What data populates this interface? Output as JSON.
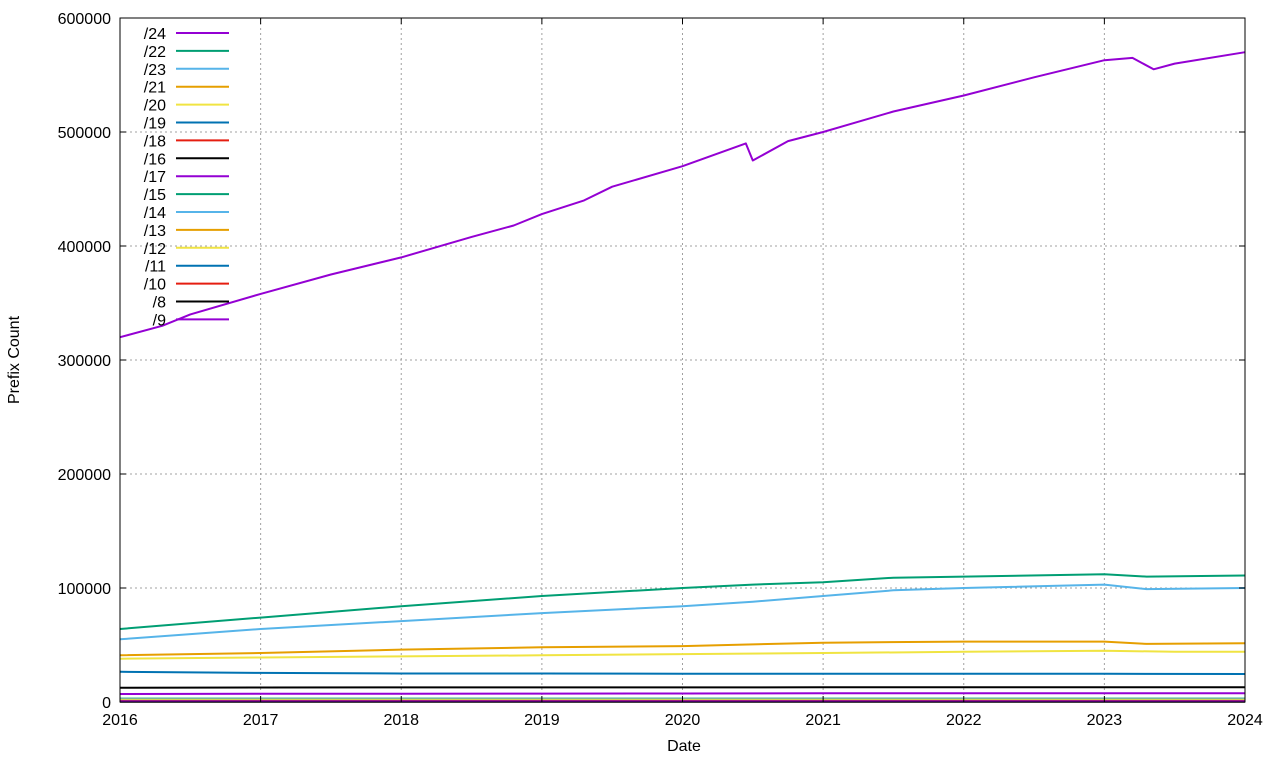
{
  "chart_data": {
    "type": "line",
    "title": "",
    "xlabel": "Date",
    "ylabel": "Prefix Count",
    "xlim": [
      2016,
      2024
    ],
    "ylim": [
      0,
      600000
    ],
    "x_ticks": [
      "2016",
      "2017",
      "2018",
      "2019",
      "2020",
      "2021",
      "2022",
      "2023",
      "2024"
    ],
    "y_ticks": [
      "0",
      "100000",
      "200000",
      "300000",
      "400000",
      "500000",
      "600000"
    ],
    "grid": true,
    "legend_position": "top-left",
    "series": [
      {
        "name": "/24",
        "color": "#9400d3",
        "x": [
          2016,
          2016.3,
          2016.5,
          2017,
          2017.5,
          2018,
          2018.5,
          2018.8,
          2019,
          2019.3,
          2019.5,
          2020,
          2020.45,
          2020.5,
          2020.75,
          2021,
          2021.5,
          2022,
          2022.5,
          2023,
          2023.2,
          2023.35,
          2023.5,
          2024
        ],
        "y": [
          320000,
          330000,
          340000,
          358000,
          375000,
          390000,
          408000,
          418000,
          428000,
          440000,
          452000,
          470000,
          490000,
          475000,
          492000,
          500000,
          518000,
          532000,
          548000,
          563000,
          565000,
          555000,
          560000,
          570000
        ]
      },
      {
        "name": "/22",
        "color": "#009e73",
        "x": [
          2016,
          2017,
          2018,
          2019,
          2020,
          2020.5,
          2021,
          2021.5,
          2022,
          2023,
          2023.3,
          2024
        ],
        "y": [
          64000,
          74000,
          84000,
          93000,
          100000,
          103000,
          105000,
          109000,
          110000,
          112000,
          110000,
          111000
        ]
      },
      {
        "name": "/23",
        "color": "#56b4e9",
        "x": [
          2016,
          2017,
          2018,
          2019,
          2020,
          2020.5,
          2021,
          2021.5,
          2022,
          2023,
          2023.3,
          2024
        ],
        "y": [
          55000,
          64000,
          71000,
          78000,
          84000,
          88000,
          93000,
          98000,
          100000,
          103000,
          99000,
          100000
        ]
      },
      {
        "name": "/21",
        "color": "#e69f00",
        "x": [
          2016,
          2017,
          2018,
          2019,
          2020,
          2021,
          2022,
          2023,
          2023.3,
          2024
        ],
        "y": [
          41000,
          43000,
          46000,
          48000,
          49000,
          52000,
          53000,
          53000,
          51000,
          51500
        ]
      },
      {
        "name": "/20",
        "color": "#f0e442",
        "x": [
          2016,
          2017,
          2018,
          2019,
          2020,
          2021,
          2022,
          2023,
          2023.5,
          2024
        ],
        "y": [
          38000,
          39000,
          40000,
          41000,
          42000,
          43000,
          44000,
          45000,
          44000,
          44000
        ]
      },
      {
        "name": "/19",
        "color": "#0072b2",
        "x": [
          2016,
          2017,
          2018,
          2019,
          2020,
          2021,
          2022,
          2023,
          2024
        ],
        "y": [
          26500,
          25500,
          25000,
          25000,
          24800,
          24800,
          24700,
          24700,
          24600
        ]
      },
      {
        "name": "/18",
        "color": "#e51e10",
        "x": [
          2016,
          2024
        ],
        "y": [
          1500,
          1500
        ]
      },
      {
        "name": "/16",
        "color": "#000000",
        "x": [
          2016,
          2017,
          2018,
          2019,
          2020,
          2021,
          2022,
          2023,
          2024
        ],
        "y": [
          12500,
          12700,
          12800,
          12800,
          12800,
          12900,
          13000,
          13000,
          13000
        ]
      },
      {
        "name": "/17",
        "color": "#9400d3",
        "x": [
          2016,
          2017,
          2018,
          2019,
          2020,
          2021,
          2022,
          2023,
          2024
        ],
        "y": [
          7000,
          7200,
          7300,
          7400,
          7500,
          7600,
          7600,
          7700,
          7700
        ]
      },
      {
        "name": "/15",
        "color": "#009e73",
        "x": [
          2016,
          2024
        ],
        "y": [
          3000,
          3000
        ]
      },
      {
        "name": "/14",
        "color": "#56b4e9",
        "x": [
          2016,
          2024
        ],
        "y": [
          2500,
          2500
        ]
      },
      {
        "name": "/13",
        "color": "#e69f00",
        "x": [
          2016,
          2024
        ],
        "y": [
          2000,
          2000
        ]
      },
      {
        "name": "/12",
        "color": "#f0e442",
        "x": [
          2016,
          2024
        ],
        "y": [
          1800,
          1800
        ]
      },
      {
        "name": "/11",
        "color": "#0072b2",
        "x": [
          2016,
          2024
        ],
        "y": [
          1000,
          1000
        ]
      },
      {
        "name": "/10",
        "color": "#e51e10",
        "x": [
          2016,
          2024
        ],
        "y": [
          800,
          800
        ]
      },
      {
        "name": "/8",
        "color": "#000000",
        "x": [
          2016,
          2024
        ],
        "y": [
          150,
          150
        ]
      },
      {
        "name": "/9",
        "color": "#9400d3",
        "x": [
          2016,
          2024
        ],
        "y": [
          400,
          400
        ]
      }
    ]
  }
}
